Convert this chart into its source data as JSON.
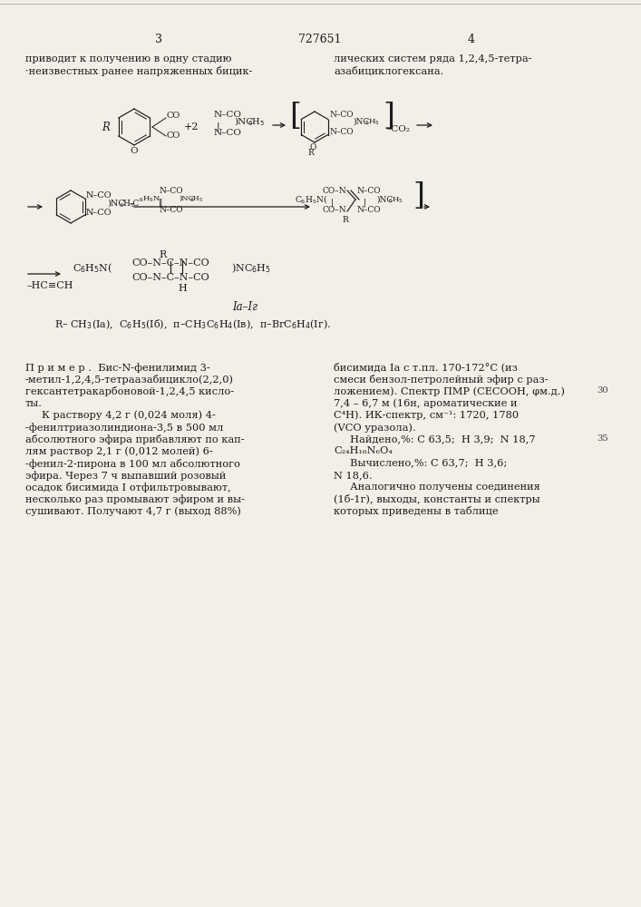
{
  "bg": "#f2efe8",
  "tc": "#1a1a1a",
  "page_left": "3",
  "page_center": "727651",
  "page_right": "4",
  "fs_body": 8.2,
  "fs_chem": 7.5,
  "col1_intro": [
    "приводит к получению в одну стадию",
    "·неизвестных ранее напряженных бицик-"
  ],
  "col2_intro": [
    "лических систем ряда 1,2,4,5-тетра-",
    "азабициклогексана."
  ],
  "ex_col1": [
    "П р и м е р .  Бис-N-фенилимид 3-",
    "-метил-1,2,4,5-тетраазабицикло(2,2,0)",
    "гексантетракарбоновой-1,2,4,5 кисло-",
    "ты.",
    "     К раствору 4,2 г (0,024 моля) 4-",
    "-фенилтриазолиндиона-3,5 в 500 мл",
    "абсолютного эфира прибавляют по кап-",
    "лям раствор 2,1 г (0,012 молей) 6-",
    "-фенил-2-пирона в 100 мл абсолютного",
    "эфира. Через 7 ч выпавший розовый",
    "осадок бисимида I отфильтровывают,",
    "несколько раз промывают эфиром и вы-",
    "сушивают. Получают 4,7 г (выход 88%)"
  ],
  "ex_col2": [
    "бисимида Ia с т.пл. 170-172°C (из",
    "смеси бензол-петролейный эфир с раз-",
    "ложением). Спектр ПМР (CECООН, φм.д.)",
    "7,4 – 6,7 м (16н, ароматические и",
    "С⁴Н). ИК-спектр, см⁻¹: 1720, 1780",
    "(VCO уразола).",
    "     Найдено,%: С 63,5;  Н 3,9;  N 18,7",
    "С₂₄Н₁₆N₆О₄",
    "     Вычислено,%: С 63,7;  Н 3,6;",
    "N 18,6.",
    "     Аналогично получены соединения",
    "(1б-1г), выходы, константы и спектры",
    "которых приведены в таблице"
  ]
}
